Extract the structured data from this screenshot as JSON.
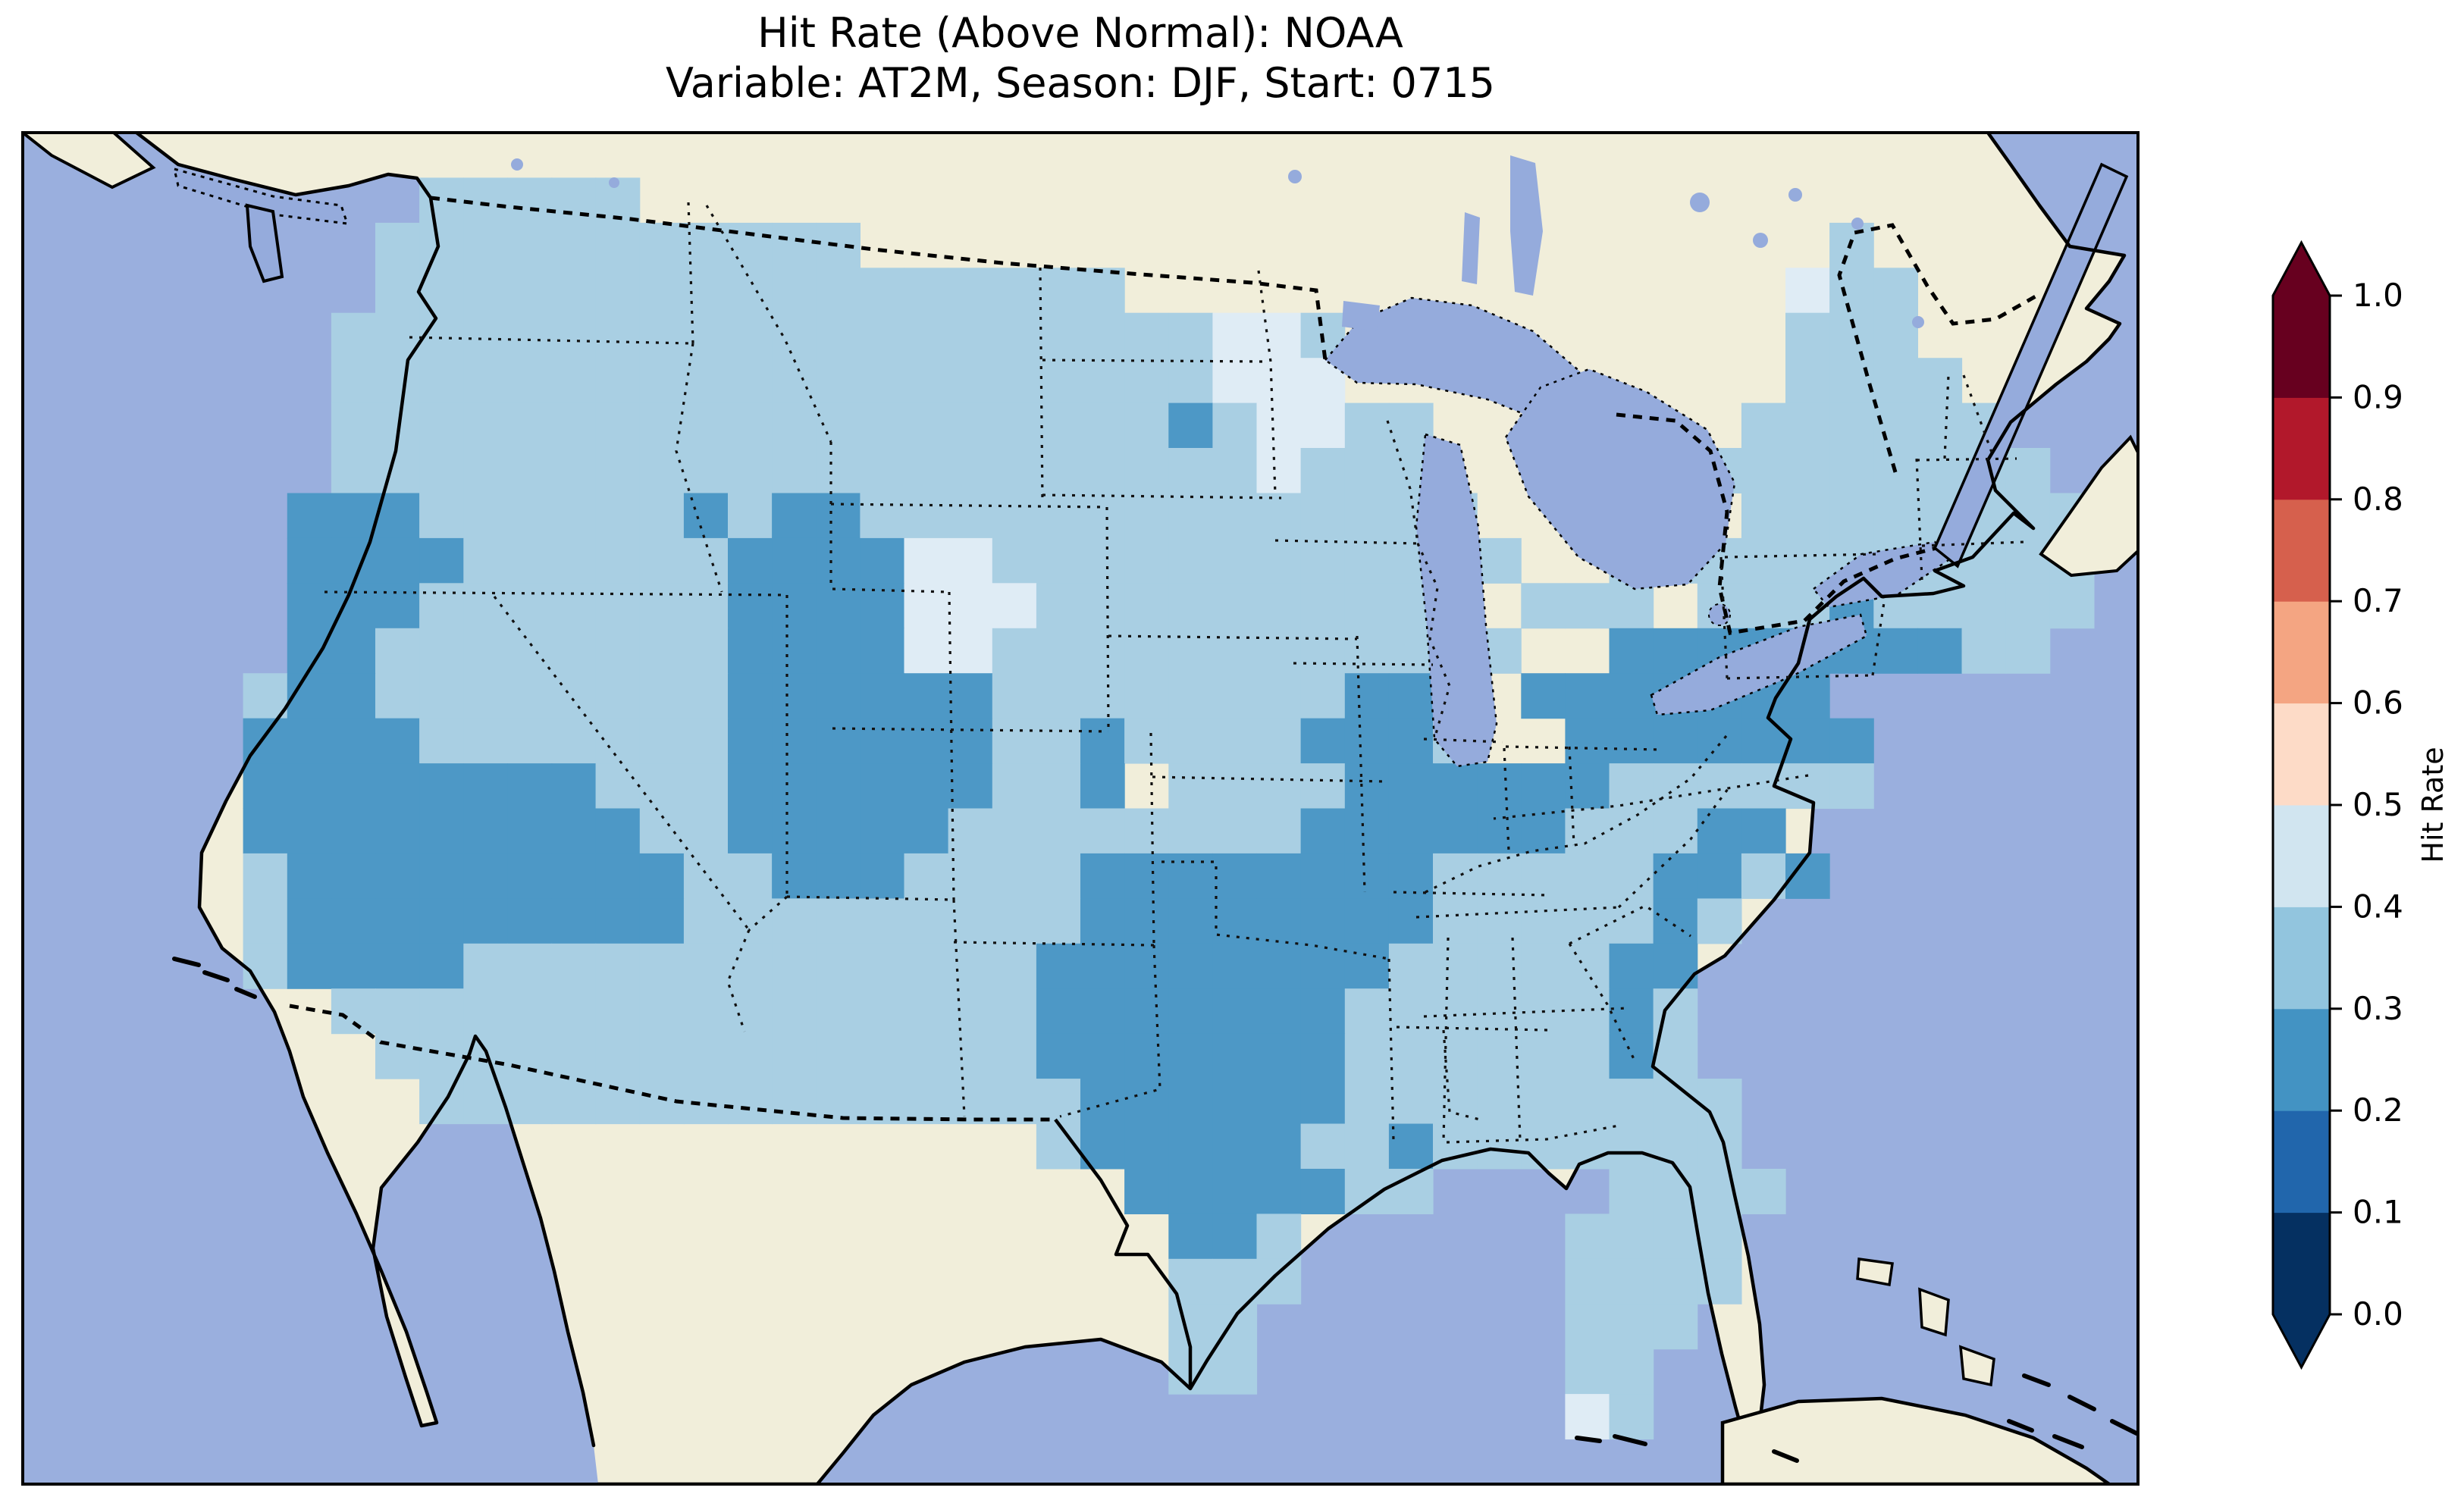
{
  "title": {
    "line1": "Hit Rate (Above Normal): NOAA",
    "line2": "Variable: AT2M, Season: DJF, Start: 0715"
  },
  "chart_data": {
    "type": "heatmap",
    "title": "Hit Rate (Above Normal): NOAA",
    "subtitle": "Variable: AT2M, Season: DJF, Start: 0715",
    "metric": "Hit Rate (Above Normal)",
    "source_label": "NOAA",
    "variable": "AT2M",
    "season": "DJF",
    "start": "0715",
    "region": "Contiguous United States",
    "legend_position": "right",
    "grid": "off",
    "colorbar": {
      "label": "Hit Rate",
      "range": [
        0.0,
        1.0
      ],
      "ticks": [
        "1.0",
        "0.9",
        "0.8",
        "0.7",
        "0.6",
        "0.5",
        "0.4",
        "0.3",
        "0.2",
        "0.1",
        "0.0"
      ],
      "extend": "both",
      "bin_colors_bottom_to_top": [
        "#053061",
        "#2166ac",
        "#4393c3",
        "#92c5de",
        "#d1e5f0",
        "#fddbc7",
        "#f4a582",
        "#d6604d",
        "#b2182b",
        "#67001f"
      ]
    },
    "map": {
      "projection": "Lambert Conformal (approx.)",
      "base_colors": {
        "ocean": "#9aafde",
        "land": "#f1eeda",
        "lake": "#95abdc"
      },
      "cell_bins": {
        "2": {
          "range": [
            0.2,
            0.3
          ],
          "color": "#4d98c6"
        },
        "3": {
          "range": [
            0.3,
            0.4
          ],
          "color": "#a9cfe3"
        },
        "4": {
          "range": [
            0.4,
            0.5
          ],
          "color": "#dfecf5"
        }
      },
      "no_data_char": ".",
      "summary": "Most of CONUS in 0.3-0.4 bin; 0.2-0.3 over coastal/central California-S.Nevada, Utah-W.Colorado, central Texas-Oklahoma-Missouri-Arkansas-Illinois-Indiana-Ohio-Kentucky-Virginia, NC/SC coast; 0.4-0.5 patches over NE Wyoming, NE Minnesota/Lake Superior, N Maine, Florida Keys",
      "grid_rows": [
        "................................................",
        ".........33333..................................",
        "........33333333333......................3......",
        "........33333333333333333...............433.....",
        ".......33333333333333333333443..........333.....",
        ".......33333333333333333333444..........3333....",
        ".......3333333333333333333234433.......333333...",
        ".......3333333333333333333334333......33333333..",
        "......222333333232233333333333333..333.33333333..",
        "......2222333333222244333333333333..33333333333...",
        "......22233333332222444333333333..333.333233333...",
        "......2233333333222244333333333333..2222222233....",
        ".....322333333332222223333333322..2222222.......",
        ".....2222333333322222233233332223..2222222.......",
        ".....22222222333222222332133332222223333337......",
        ".....222222222332222233333333222222333228.......",
        ".....322222222233222333322222222333332232.......",
        ".....3222222222333333333222222223333323.........",
        ".....32222333333333333322222222333332210........",
        ".......3333333333333333222222233333323..........",
        "........333333333333333222222233333323..........",
        ".........333333333333333222222333333333.........",
        ".......................3222223323333333.........",
        ".........................2222233....3333........",
        "..........................223......3333.........",
        "..........................333......3333.........",
        "..........................33.......333..........",
        "..........................33.......33...........",
        "...................................43............",
        "................................................"
      ]
    }
  }
}
